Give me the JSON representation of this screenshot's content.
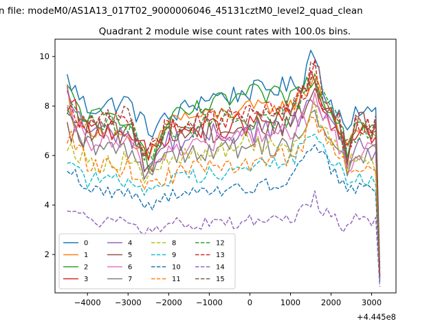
{
  "chart_data": {
    "type": "line",
    "suptitle": "n file: modeM0/AS1A13_017T02_9000006046_45131cztM0_level2_quad_clean",
    "title": "Quadrant 2 module wise count rates with 100.0s bins.",
    "xlabel": "",
    "ylabel": "",
    "x_offset_label": "+4.445e8",
    "xlim": [
      -4800,
      3600
    ],
    "ylim": [
      0.45,
      10.7
    ],
    "xticks": [
      -4000,
      -3000,
      -2000,
      -1000,
      0,
      1000,
      2000,
      3000
    ],
    "xtick_labels": [
      "−4000",
      "−3000",
      "−2000",
      "−1000",
      "0",
      "1000",
      "2000",
      "3000"
    ],
    "yticks": [
      2,
      4,
      6,
      8,
      10
    ],
    "ytick_labels": [
      "2",
      "4",
      "6",
      "8",
      "10"
    ],
    "grid": false,
    "legend": {
      "placement": "lower-left",
      "columns": 4
    },
    "x_start": -4500,
    "x_step": 100,
    "x_end": 3200,
    "series": [
      {
        "name": "0",
        "color": "#1f77b4",
        "dash": "solid",
        "base": 8.0,
        "noise": 0.3,
        "end": 1.4,
        "points": [
          [
            -4500,
            9.1
          ],
          [
            -4000,
            7.9
          ],
          [
            -3000,
            8.2
          ],
          [
            -2500,
            7.0
          ],
          [
            -1500,
            8.0
          ],
          [
            -1000,
            8.4
          ],
          [
            -500,
            8.4
          ],
          [
            0,
            8.6
          ],
          [
            1000,
            8.8
          ],
          [
            1300,
            9.0
          ],
          [
            1500,
            10.2
          ],
          [
            1600,
            10.1
          ],
          [
            1800,
            8.8
          ],
          [
            2200,
            7.6
          ],
          [
            2400,
            6.7
          ],
          [
            2600,
            8.0
          ],
          [
            3000,
            7.8
          ],
          [
            3100,
            8.3
          ]
        ]
      },
      {
        "name": "1",
        "color": "#ff7f0e",
        "dash": "solid",
        "base": 7.2,
        "noise": 0.25,
        "end": 1.2,
        "points": [
          [
            -4500,
            8.7
          ],
          [
            -4300,
            7.2
          ],
          [
            -3500,
            7.0
          ],
          [
            -2500,
            5.9
          ],
          [
            -2000,
            7.5
          ],
          [
            -1000,
            7.6
          ],
          [
            0,
            7.9
          ],
          [
            1000,
            8.0
          ],
          [
            1400,
            8.6
          ],
          [
            1600,
            9.3
          ],
          [
            1800,
            8.4
          ],
          [
            2200,
            7.2
          ],
          [
            2400,
            6.1
          ],
          [
            2600,
            7.1
          ],
          [
            3100,
            7.0
          ]
        ]
      },
      {
        "name": "2",
        "color": "#2ca02c",
        "dash": "solid",
        "base": 7.6,
        "noise": 0.3,
        "end": 1.1,
        "points": [
          [
            -4500,
            8.6
          ],
          [
            -4000,
            7.5
          ],
          [
            -3000,
            7.6
          ],
          [
            -2500,
            5.5
          ],
          [
            -2000,
            7.4
          ],
          [
            -1000,
            8.0
          ],
          [
            0,
            8.5
          ],
          [
            500,
            8.4
          ],
          [
            1000,
            8.4
          ],
          [
            1300,
            8.8
          ],
          [
            1500,
            9.1
          ],
          [
            1700,
            8.6
          ],
          [
            2200,
            7.5
          ],
          [
            2400,
            6.3
          ],
          [
            2600,
            7.4
          ],
          [
            3100,
            7.4
          ]
        ]
      },
      {
        "name": "3",
        "color": "#d62728",
        "dash": "solid",
        "base": 7.2,
        "noise": 0.35,
        "end": 1.1,
        "points": [
          [
            -4500,
            8.3
          ],
          [
            -4000,
            7.0
          ],
          [
            -3000,
            7.1
          ],
          [
            -2500,
            5.9
          ],
          [
            -2000,
            7.0
          ],
          [
            -1000,
            7.1
          ],
          [
            0,
            7.3
          ],
          [
            1000,
            7.5
          ],
          [
            1300,
            8.4
          ],
          [
            1500,
            9.1
          ],
          [
            1700,
            8.2
          ],
          [
            2200,
            6.9
          ],
          [
            2400,
            6.0
          ],
          [
            2600,
            6.8
          ],
          [
            3100,
            6.8
          ]
        ]
      },
      {
        "name": "4",
        "color": "#9467bd",
        "dash": "solid",
        "base": 7.0,
        "noise": 0.35,
        "end": 1.0,
        "points": [
          [
            -4500,
            8.4
          ],
          [
            -4000,
            7.0
          ],
          [
            -3000,
            6.9
          ],
          [
            -2500,
            5.6
          ],
          [
            -2000,
            6.6
          ],
          [
            -1000,
            6.8
          ],
          [
            0,
            7.0
          ],
          [
            1000,
            7.2
          ],
          [
            1400,
            7.8
          ],
          [
            1600,
            8.5
          ],
          [
            1800,
            7.5
          ],
          [
            2200,
            6.5
          ],
          [
            2400,
            5.8
          ],
          [
            2600,
            6.5
          ],
          [
            3100,
            6.1
          ]
        ]
      },
      {
        "name": "5",
        "color": "#8c564b",
        "dash": "solid",
        "base": 7.0,
        "noise": 0.4,
        "end": 1.0,
        "points": [
          [
            -4500,
            6.9
          ],
          [
            -4000,
            6.8
          ],
          [
            -3000,
            7.0
          ],
          [
            -2500,
            5.6
          ],
          [
            -2000,
            6.9
          ],
          [
            -1000,
            7.0
          ],
          [
            0,
            7.1
          ],
          [
            1000,
            7.3
          ],
          [
            1400,
            8.0
          ],
          [
            1600,
            9.0
          ],
          [
            1800,
            8.0
          ],
          [
            2200,
            7.2
          ],
          [
            2400,
            6.0
          ],
          [
            2600,
            7.2
          ],
          [
            3100,
            7.2
          ]
        ]
      },
      {
        "name": "6",
        "color": "#e377c2",
        "dash": "solid",
        "base": 6.7,
        "noise": 0.35,
        "end": 1.0,
        "points": [
          [
            -4500,
            7.6
          ],
          [
            -4000,
            6.6
          ],
          [
            -3000,
            6.4
          ],
          [
            -2500,
            5.3
          ],
          [
            -2000,
            6.3
          ],
          [
            -1000,
            6.5
          ],
          [
            0,
            6.8
          ],
          [
            1000,
            6.9
          ],
          [
            1400,
            7.6
          ],
          [
            1600,
            8.6
          ],
          [
            1800,
            7.4
          ],
          [
            2200,
            6.3
          ],
          [
            2400,
            5.5
          ],
          [
            2600,
            6.2
          ],
          [
            3100,
            6.0
          ]
        ]
      },
      {
        "name": "7",
        "color": "#7f7f7f",
        "dash": "solid",
        "base": 6.4,
        "noise": 0.35,
        "end": 0.9,
        "points": [
          [
            -4500,
            7.5
          ],
          [
            -4000,
            6.3
          ],
          [
            -3000,
            6.2
          ],
          [
            -2500,
            5.3
          ],
          [
            -2000,
            6.2
          ],
          [
            -1000,
            6.1
          ],
          [
            0,
            6.4
          ],
          [
            1000,
            6.5
          ],
          [
            1400,
            7.0
          ],
          [
            1600,
            7.7
          ],
          [
            1800,
            7.0
          ],
          [
            2200,
            6.2
          ],
          [
            2400,
            5.3
          ],
          [
            2600,
            6.2
          ],
          [
            3100,
            6.0
          ]
        ]
      },
      {
        "name": "8",
        "color": "#bcbd22",
        "dash": "dashed",
        "base": 6.0,
        "noise": 0.3,
        "end": 1.2,
        "points": [
          [
            -4500,
            6.6
          ],
          [
            -4000,
            5.7
          ],
          [
            -3000,
            5.8
          ],
          [
            -2500,
            5.1
          ],
          [
            -2000,
            5.8
          ],
          [
            -1000,
            6.1
          ],
          [
            0,
            6.6
          ],
          [
            1000,
            6.4
          ],
          [
            1400,
            7.4
          ],
          [
            1600,
            7.9
          ],
          [
            1800,
            7.0
          ],
          [
            2200,
            6.0
          ],
          [
            2400,
            5.4
          ],
          [
            2600,
            6.0
          ],
          [
            3100,
            5.6
          ]
        ]
      },
      {
        "name": "9",
        "color": "#17becf",
        "dash": "dashed",
        "base": 5.2,
        "noise": 0.25,
        "end": 1.0,
        "points": [
          [
            -4500,
            6.0
          ],
          [
            -4000,
            5.0
          ],
          [
            -3000,
            5.0
          ],
          [
            -2500,
            4.6
          ],
          [
            -2000,
            5.0
          ],
          [
            -1000,
            5.3
          ],
          [
            0,
            5.5
          ],
          [
            1000,
            5.8
          ],
          [
            1400,
            6.5
          ],
          [
            1600,
            7.2
          ],
          [
            1800,
            6.3
          ],
          [
            2200,
            5.4
          ],
          [
            2400,
            4.8
          ],
          [
            2600,
            5.2
          ],
          [
            3100,
            5.0
          ]
        ]
      },
      {
        "name": "10",
        "color": "#1f77b4",
        "dash": "dashed",
        "base": 4.6,
        "noise": 0.2,
        "end": 0.9,
        "points": [
          [
            -4500,
            5.6
          ],
          [
            -4000,
            4.6
          ],
          [
            -3000,
            4.5
          ],
          [
            -2500,
            4.0
          ],
          [
            -2000,
            4.4
          ],
          [
            -1000,
            4.5
          ],
          [
            0,
            4.7
          ],
          [
            1000,
            5.0
          ],
          [
            1400,
            6.2
          ],
          [
            1600,
            6.6
          ],
          [
            1800,
            6.0
          ],
          [
            2200,
            5.0
          ],
          [
            2400,
            4.5
          ],
          [
            2600,
            4.7
          ],
          [
            3100,
            4.6
          ]
        ]
      },
      {
        "name": "11",
        "color": "#ff7f0e",
        "dash": "dashed",
        "base": 5.8,
        "noise": 0.3,
        "end": 1.1,
        "points": [
          [
            -4500,
            6.8
          ],
          [
            -4000,
            5.7
          ],
          [
            -3000,
            5.5
          ],
          [
            -2500,
            4.8
          ],
          [
            -2000,
            5.2
          ],
          [
            -1000,
            5.5
          ],
          [
            0,
            5.7
          ],
          [
            1000,
            5.9
          ],
          [
            1400,
            6.8
          ],
          [
            1600,
            7.6
          ],
          [
            1800,
            6.8
          ],
          [
            2200,
            5.9
          ],
          [
            2400,
            5.2
          ],
          [
            2600,
            5.8
          ],
          [
            3100,
            5.4
          ]
        ]
      },
      {
        "name": "12",
        "color": "#2ca02c",
        "dash": "dashed",
        "base": 7.3,
        "noise": 0.35,
        "end": 1.1,
        "points": [
          [
            -4500,
            8.0
          ],
          [
            -4000,
            7.2
          ],
          [
            -3000,
            7.2
          ],
          [
            -2500,
            5.9
          ],
          [
            -2000,
            7.1
          ],
          [
            -1000,
            7.3
          ],
          [
            0,
            7.5
          ],
          [
            1000,
            7.6
          ],
          [
            1400,
            8.6
          ],
          [
            1600,
            9.2
          ],
          [
            1800,
            8.2
          ],
          [
            2200,
            7.2
          ],
          [
            2400,
            6.1
          ],
          [
            2600,
            7.0
          ],
          [
            3100,
            6.9
          ]
        ]
      },
      {
        "name": "13",
        "color": "#d62728",
        "dash": "dashed",
        "base": 7.4,
        "noise": 0.35,
        "end": 1.1,
        "points": [
          [
            -4500,
            8.1
          ],
          [
            -4000,
            7.3
          ],
          [
            -3000,
            7.4
          ],
          [
            -2500,
            6.0
          ],
          [
            -2000,
            7.3
          ],
          [
            -1000,
            7.4
          ],
          [
            0,
            7.6
          ],
          [
            1000,
            7.8
          ],
          [
            1400,
            8.7
          ],
          [
            1600,
            9.6
          ],
          [
            1800,
            8.3
          ],
          [
            2200,
            7.3
          ],
          [
            2400,
            6.2
          ],
          [
            2600,
            7.1
          ],
          [
            3100,
            7.0
          ]
        ]
      },
      {
        "name": "14",
        "color": "#9467bd",
        "dash": "dashed",
        "base": 3.3,
        "noise": 0.2,
        "end": 0.7,
        "points": [
          [
            -4500,
            3.9
          ],
          [
            -4000,
            3.4
          ],
          [
            -3000,
            3.2
          ],
          [
            -2500,
            2.9
          ],
          [
            -2000,
            3.3
          ],
          [
            -1000,
            3.2
          ],
          [
            0,
            3.4
          ],
          [
            1000,
            3.4
          ],
          [
            1400,
            3.9
          ],
          [
            1600,
            4.3
          ],
          [
            1800,
            3.8
          ],
          [
            2200,
            3.3
          ],
          [
            2400,
            3.0
          ],
          [
            2600,
            3.4
          ],
          [
            3100,
            3.3
          ]
        ]
      },
      {
        "name": "15",
        "color": "#8c564b",
        "dash": "dashed",
        "base": 7.6,
        "noise": 0.3,
        "end": 1.2,
        "points": [
          [
            -4500,
            7.9
          ],
          [
            -4000,
            7.5
          ],
          [
            -3000,
            7.6
          ],
          [
            -2500,
            6.0
          ],
          [
            -2000,
            7.4
          ],
          [
            -1000,
            7.5
          ],
          [
            0,
            7.7
          ],
          [
            1000,
            7.9
          ],
          [
            1400,
            8.9
          ],
          [
            1600,
            9.9
          ],
          [
            1800,
            8.5
          ],
          [
            2200,
            7.4
          ],
          [
            2400,
            6.3
          ],
          [
            2600,
            7.3
          ],
          [
            3100,
            7.2
          ]
        ]
      }
    ]
  }
}
